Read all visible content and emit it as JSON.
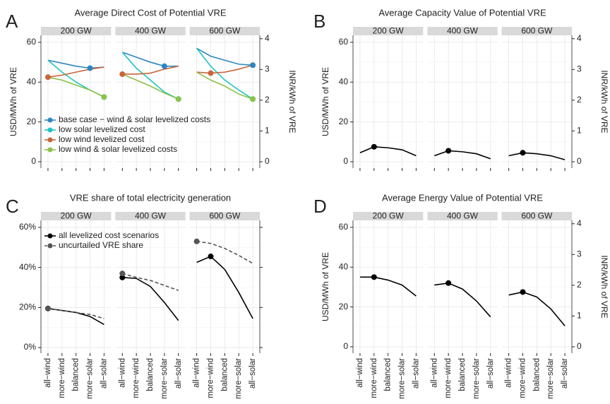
{
  "chart_data": [
    {
      "type": "line",
      "panel": "A",
      "title": "Average Direct Cost of Potential VRE",
      "facets": [
        "200 GW",
        "400 GW",
        "600 GW"
      ],
      "ylabel": "USD/MWh of VRE",
      "y2label": "INR/kWh of VRE",
      "ylim": [
        -3.2,
        63.5
      ],
      "yticks": [
        0,
        20,
        40,
        60
      ],
      "y2lim": [
        -0.207,
        4.11
      ],
      "y2ticks": [
        0,
        1,
        2,
        3,
        4
      ],
      "legend": "bottom-left",
      "series": [
        {
          "name": "base case − wind & solar levelized costs",
          "color": "#2e86c1",
          "values": [
            [
              51,
              49.5,
              48,
              47,
              47.5
            ],
            [
              55,
              52.5,
              50,
              48,
              48
            ],
            [
              57,
              53,
              51,
              49,
              48.5
            ]
          ],
          "marker": [
            3,
            3,
            4
          ]
        },
        {
          "name": "low solar levelized cost",
          "color": "#1fc4c4",
          "values": [
            [
              51,
              45,
              40,
              36,
              32.5
            ],
            [
              55,
              47,
              41,
              35,
              31.5
            ],
            [
              57,
              48,
              41,
              36,
              31.5
            ]
          ],
          "marker": [
            4,
            4,
            4
          ]
        },
        {
          "name": "low wind levelized cost",
          "color": "#c9653b",
          "values": [
            [
              42.5,
              43.5,
              45,
              46.5,
              47.5
            ],
            [
              44,
              44,
              44.5,
              46.5,
              48
            ],
            [
              45,
              44.5,
              45,
              46.5,
              48.5
            ]
          ],
          "marker": [
            0,
            0,
            1
          ]
        },
        {
          "name": "low wind & solar levelized costs",
          "color": "#8cc24a",
          "values": [
            [
              42.5,
              41,
              38.5,
              36,
              32.5
            ],
            [
              44,
              41,
              38,
              34.5,
              31.5
            ],
            [
              45,
              41,
              38,
              34,
              31.5
            ]
          ],
          "marker": [
            4,
            4,
            4
          ]
        }
      ]
    },
    {
      "type": "line",
      "panel": "B",
      "title": "Average Capacity Value of Potential VRE",
      "facets": [
        "200 GW",
        "400 GW",
        "600 GW"
      ],
      "ylabel": "USD/MWh of VRE",
      "y2label": "INR/kWh of VRE",
      "ylim": [
        -3.2,
        63.5
      ],
      "yticks": [
        0,
        20,
        40,
        60
      ],
      "y2lim": [
        -0.207,
        4.11
      ],
      "y2ticks": [
        0,
        1,
        2,
        3,
        4
      ],
      "series": [
        {
          "color": "#000000",
          "values": [
            [
              4.5,
              7.5,
              7,
              6,
              3
            ],
            [
              3,
              5.5,
              5,
              4,
              1.5
            ],
            [
              3,
              4.5,
              4,
              3,
              1
            ]
          ],
          "marker": [
            1,
            1,
            1
          ]
        }
      ]
    },
    {
      "type": "line",
      "panel": "C",
      "title": "VRE share of total electricity generation",
      "facets": [
        "200 GW",
        "400 GW",
        "600 GW"
      ],
      "categories": [
        "all−wind",
        "more−wind",
        "balanced",
        "more−solar",
        "all−solar"
      ],
      "ylim": [
        -2.8,
        63.5
      ],
      "yticks": [
        {
          "value": 0,
          "label": "0%"
        },
        {
          "value": 20,
          "label": "20%"
        },
        {
          "value": 40,
          "label": "40%"
        },
        {
          "value": 60,
          "label": "60%"
        }
      ],
      "legend": "top-left",
      "series": [
        {
          "name": "all levelized cost scenarios",
          "color": "#000000",
          "values": [
            [
              19.5,
              18.5,
              17.5,
              15.5,
              11.5
            ],
            [
              35,
              34.5,
              30.5,
              22.5,
              13.5
            ],
            [
              42.5,
              45.5,
              39,
              27.5,
              14.5
            ]
          ],
          "marker": [
            0,
            0,
            1
          ]
        },
        {
          "name": "uncurtailed VRE share",
          "color": "#555555",
          "dashed": true,
          "values": [
            [
              19.5,
              18.5,
              17.5,
              16.5,
              14.5
            ],
            [
              37,
              35,
              33.5,
              31,
              28.5
            ],
            [
              53,
              52,
              49.5,
              46,
              42
            ]
          ],
          "marker": [
            0,
            0,
            0
          ]
        }
      ]
    },
    {
      "type": "line",
      "panel": "D",
      "title": "Average Energy Value of Potential VRE",
      "facets": [
        "200 GW",
        "400 GW",
        "600 GW"
      ],
      "categories": [
        "all−wind",
        "more−wind",
        "balanced",
        "more−solar",
        "all−solar"
      ],
      "ylabel": "USD/MWh of VRE",
      "y2label": "INR/kWh of VRE",
      "ylim": [
        -3.2,
        63.5
      ],
      "yticks": [
        0,
        20,
        40,
        60
      ],
      "y2lim": [
        -0.207,
        4.11
      ],
      "y2ticks": [
        0,
        1,
        2,
        3,
        4
      ],
      "series": [
        {
          "color": "#000000",
          "values": [
            [
              35,
              35,
              33.5,
              31,
              25.5
            ],
            [
              31,
              32,
              29,
              23,
              15
            ],
            [
              26,
              27.5,
              25,
              19,
              10.5
            ]
          ],
          "marker": [
            1,
            1,
            1
          ]
        }
      ]
    }
  ]
}
